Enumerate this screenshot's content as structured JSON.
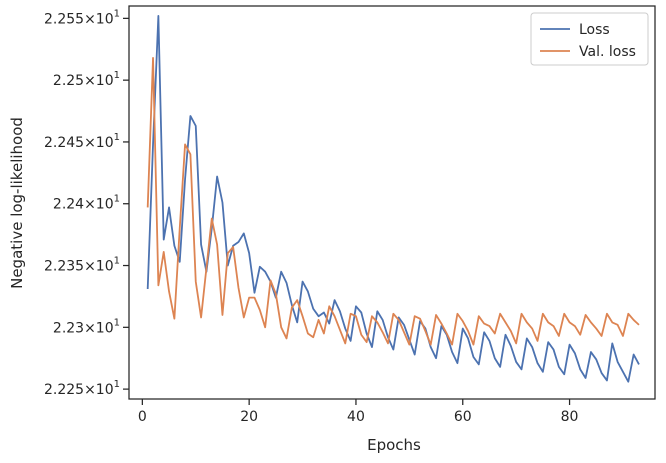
{
  "chart_data": {
    "type": "line",
    "title": "",
    "xlabel": "Epochs",
    "ylabel": "Negative log-likelihood",
    "xlim": [
      -2.5,
      96
    ],
    "ylim": [
      22.242,
      22.56
    ],
    "x_ticks": [
      0,
      20,
      40,
      60,
      80
    ],
    "y_ticks": [
      {
        "value": 22.25,
        "mantissa": "2.225",
        "exp": "1"
      },
      {
        "value": 22.3,
        "mantissa": "2.23",
        "exp": "1"
      },
      {
        "value": 22.35,
        "mantissa": "2.235",
        "exp": "1"
      },
      {
        "value": 22.4,
        "mantissa": "2.24",
        "exp": "1"
      },
      {
        "value": 22.45,
        "mantissa": "2.245",
        "exp": "1"
      },
      {
        "value": 22.5,
        "mantissa": "2.25",
        "exp": "1"
      },
      {
        "value": 22.55,
        "mantissa": "2.255",
        "exp": "1"
      }
    ],
    "tick_times": "×",
    "legend_position": "top-right",
    "grid": false,
    "series": [
      {
        "name": "Loss",
        "color": "#4c72b0",
        "x": [
          1,
          2,
          3,
          4,
          5,
          6,
          7,
          8,
          9,
          10,
          11,
          12,
          13,
          14,
          15,
          16,
          17,
          18,
          19,
          20,
          21,
          22,
          23,
          24,
          25,
          26,
          27,
          28,
          29,
          30,
          31,
          32,
          33,
          34,
          35,
          36,
          37,
          38,
          39,
          40,
          41,
          42,
          43,
          44,
          45,
          46,
          47,
          48,
          49,
          50,
          51,
          52,
          53,
          54,
          55,
          56,
          57,
          58,
          59,
          60,
          61,
          62,
          63,
          64,
          65,
          66,
          67,
          68,
          69,
          70,
          71,
          72,
          73,
          74,
          75,
          76,
          77,
          78,
          79,
          80,
          81,
          82,
          83,
          84,
          85,
          86,
          87,
          88,
          89,
          90,
          91,
          92,
          93
        ],
        "y": [
          22.331,
          22.448,
          22.552,
          22.371,
          22.397,
          22.366,
          22.353,
          22.42,
          22.471,
          22.463,
          22.367,
          22.345,
          22.38,
          22.422,
          22.401,
          22.35,
          22.366,
          22.369,
          22.376,
          22.36,
          22.328,
          22.349,
          22.345,
          22.337,
          22.324,
          22.345,
          22.336,
          22.318,
          22.304,
          22.337,
          22.329,
          22.315,
          22.309,
          22.312,
          22.303,
          22.322,
          22.313,
          22.299,
          22.289,
          22.317,
          22.312,
          22.295,
          22.284,
          22.313,
          22.306,
          22.292,
          22.282,
          22.308,
          22.302,
          22.29,
          22.278,
          22.305,
          22.299,
          22.284,
          22.275,
          22.301,
          22.294,
          22.28,
          22.271,
          22.299,
          22.291,
          22.276,
          22.27,
          22.296,
          22.289,
          22.275,
          22.268,
          22.294,
          22.285,
          22.272,
          22.266,
          22.291,
          22.284,
          22.271,
          22.264,
          22.288,
          22.282,
          22.268,
          22.262,
          22.286,
          22.279,
          22.266,
          22.259,
          22.28,
          22.274,
          22.263,
          22.257,
          22.287,
          22.272,
          22.264,
          22.256,
          22.278,
          22.27
        ]
      },
      {
        "name": "Val. loss",
        "color": "#dd8452",
        "x": [
          1,
          2,
          3,
          4,
          5,
          6,
          7,
          8,
          9,
          10,
          11,
          12,
          13,
          14,
          15,
          16,
          17,
          18,
          19,
          20,
          21,
          22,
          23,
          24,
          25,
          26,
          27,
          28,
          29,
          30,
          31,
          32,
          33,
          34,
          35,
          36,
          37,
          38,
          39,
          40,
          41,
          42,
          43,
          44,
          45,
          46,
          47,
          48,
          49,
          50,
          51,
          52,
          53,
          54,
          55,
          56,
          57,
          58,
          59,
          60,
          61,
          62,
          63,
          64,
          65,
          66,
          67,
          68,
          69,
          70,
          71,
          72,
          73,
          74,
          75,
          76,
          77,
          78,
          79,
          80,
          81,
          82,
          83,
          84,
          85,
          86,
          87,
          88,
          89,
          90,
          91,
          92,
          93
        ],
        "y": [
          22.397,
          22.518,
          22.334,
          22.361,
          22.329,
          22.307,
          22.38,
          22.448,
          22.44,
          22.337,
          22.308,
          22.348,
          22.388,
          22.367,
          22.31,
          22.36,
          22.365,
          22.332,
          22.308,
          22.324,
          22.324,
          22.314,
          22.3,
          22.338,
          22.327,
          22.3,
          22.291,
          22.316,
          22.322,
          22.309,
          22.295,
          22.292,
          22.306,
          22.295,
          22.317,
          22.309,
          22.298,
          22.287,
          22.311,
          22.309,
          22.294,
          22.288,
          22.309,
          22.304,
          22.296,
          22.287,
          22.311,
          22.306,
          22.296,
          22.286,
          22.309,
          22.307,
          22.297,
          22.286,
          22.31,
          22.303,
          22.295,
          22.286,
          22.311,
          22.305,
          22.297,
          22.286,
          22.309,
          22.303,
          22.301,
          22.295,
          22.311,
          22.304,
          22.297,
          22.287,
          22.311,
          22.304,
          22.299,
          22.289,
          22.311,
          22.304,
          22.301,
          22.293,
          22.311,
          22.304,
          22.301,
          22.294,
          22.31,
          22.304,
          22.299,
          22.293,
          22.311,
          22.304,
          22.302,
          22.293,
          22.311,
          22.306,
          22.302
        ]
      }
    ]
  }
}
